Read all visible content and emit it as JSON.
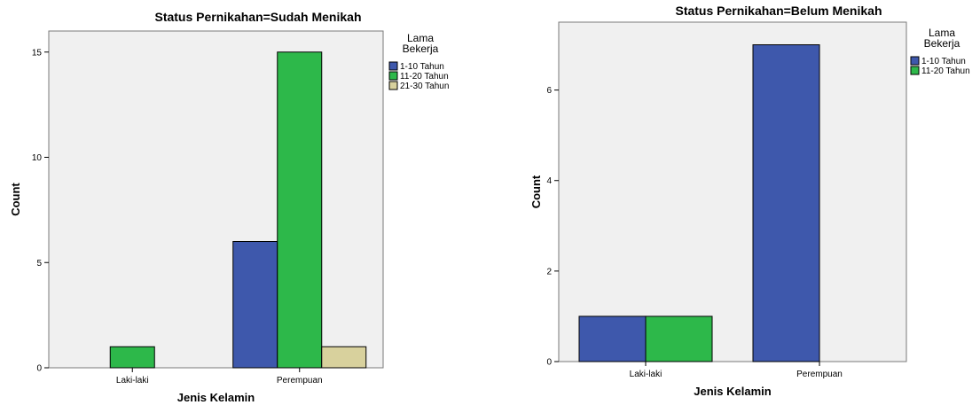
{
  "colors": {
    "plot_bg": "#f0f0f0",
    "series": [
      "#3e58ac",
      "#2db84a",
      "#d8d19d"
    ]
  },
  "chart_data": [
    {
      "type": "bar",
      "title": "Status Pernikahan=Sudah Menikah",
      "xlabel": "Jenis Kelamin",
      "ylabel": "Count",
      "categories": [
        "Laki-laki",
        "Perempuan"
      ],
      "ylim": [
        0,
        16
      ],
      "yticks": [
        0,
        5,
        10,
        15
      ],
      "legend_title": [
        "Lama",
        "Bekerja"
      ],
      "series": [
        {
          "name": "1-10 Tahun",
          "values": [
            0,
            6
          ]
        },
        {
          "name": "11-20 Tahun",
          "values": [
            1,
            15
          ]
        },
        {
          "name": "21-30 Tahun",
          "values": [
            0,
            1
          ]
        }
      ]
    },
    {
      "type": "bar",
      "title": "Status Pernikahan=Belum Menikah",
      "xlabel": "Jenis Kelamin",
      "ylabel": "Count",
      "categories": [
        "Laki-laki",
        "Perempuan"
      ],
      "ylim": [
        0,
        7.5
      ],
      "yticks": [
        0,
        2,
        4,
        6
      ],
      "legend_title": [
        "Lama",
        "Bekerja"
      ],
      "series": [
        {
          "name": "1-10 Tahun",
          "values": [
            1,
            7
          ]
        },
        {
          "name": "11-20 Tahun",
          "values": [
            1,
            0
          ]
        }
      ]
    }
  ]
}
